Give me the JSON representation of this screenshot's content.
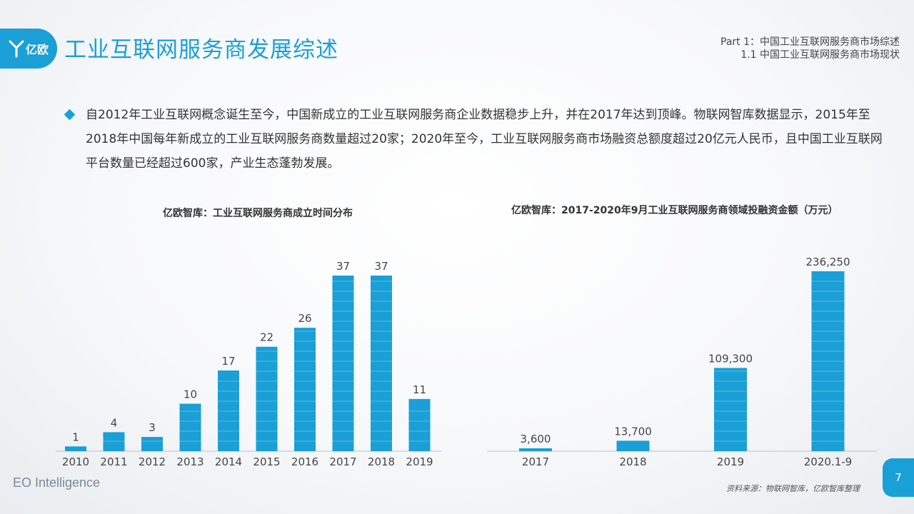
{
  "header": {
    "logo_text": "亿欧",
    "title": "工业互联网服务商发展综述",
    "breadcrumb_line1": "Part 1：中国工业互联网服务商市场综述",
    "breadcrumb_line2": "1.1 中国工业互联网服务商市场现状"
  },
  "summary": {
    "text": "自2012年工业互联网概念诞生至今，中国新成立的工业互联网服务商企业数据稳步上升，并在2017年达到顶峰。物联网智库数据显示，2015年至2018年中国每年新成立的工业互联网服务商数量超过20家；2020年至今，工业互联网服务商市场融资总额度超过20亿元人民币，且中国工业互联网平台数量已经超过600家，产业生态蓬勃发展。"
  },
  "colors": {
    "accent": "#1a9fd6",
    "bar": "#1a9fd6"
  },
  "chart_data": [
    {
      "type": "bar",
      "title": "亿欧智库：工业互联网服务商成立时间分布",
      "categories": [
        "2010",
        "2011",
        "2012",
        "2013",
        "2014",
        "2015",
        "2016",
        "2017",
        "2018",
        "2019"
      ],
      "values": [
        1,
        4,
        3,
        10,
        17,
        22,
        26,
        37,
        37,
        11
      ],
      "labels": [
        "1",
        "4",
        "3",
        "10",
        "17",
        "22",
        "26",
        "37",
        "37",
        "11"
      ],
      "ylim": [
        0,
        37
      ]
    },
    {
      "type": "bar",
      "title": "亿欧智库：2017-2020年9月工业互联网服务商领域投融资金额（万元）",
      "categories": [
        "2017",
        "2018",
        "2019",
        "2020.1-9"
      ],
      "values": [
        3600,
        13700,
        109300,
        236250
      ],
      "labels": [
        "3,600",
        "13,700",
        "109,300",
        "236,250"
      ],
      "ylim": [
        0,
        236250
      ]
    }
  ],
  "footer": {
    "brand": "EO Intelligence",
    "source": "资料来源：物联网智库，亿欧智库整理",
    "page_number": "7"
  }
}
